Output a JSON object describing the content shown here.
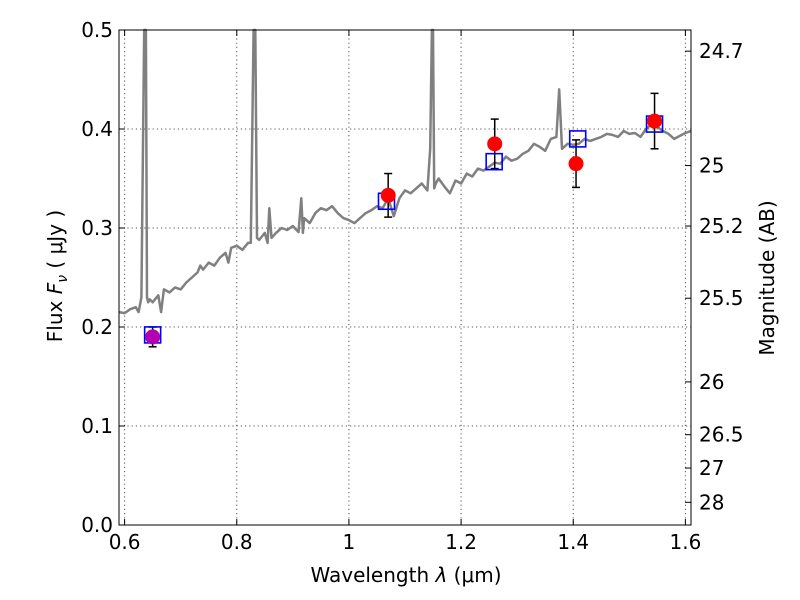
{
  "chart_data": {
    "type": "scatter",
    "title": "",
    "xlabel_prefix": "Wavelength  ",
    "xlabel_symbol": "λ",
    "xlabel_unit": " (μm)",
    "ylabel_prefix": "Flux  ",
    "ylabel_symbol": "F",
    "ylabel_subscript": "ν",
    "ylabel_unit": "  ( μJy )",
    "y2label": "Magnitude (AB)",
    "xlim": [
      0.59,
      1.61
    ],
    "ylim": [
      0.0,
      0.5
    ],
    "grid": true,
    "x_ticks": [
      0.6,
      0.8,
      1.0,
      1.2,
      1.4,
      1.6
    ],
    "x_tick_labels": [
      "0.6",
      "0.8",
      "1",
      "1.2",
      "1.4",
      "1.6"
    ],
    "y_ticks": [
      0.0,
      0.1,
      0.2,
      0.3,
      0.4,
      0.5
    ],
    "y_tick_labels": [
      "0.0",
      "0.1",
      "0.2",
      "0.3",
      "0.4",
      "0.5"
    ],
    "mag_ticks": [
      {
        "mag": 24.7,
        "label": "24.7"
      },
      {
        "mag": 25.0,
        "label": "25"
      },
      {
        "mag": 25.2,
        "label": "25.2"
      },
      {
        "mag": 25.5,
        "label": "25.5"
      },
      {
        "mag": 26.0,
        "label": "26"
      },
      {
        "mag": 26.5,
        "label": "26.5"
      },
      {
        "mag": 27.0,
        "label": "27"
      },
      {
        "mag": 28.0,
        "label": "28"
      }
    ],
    "series": [
      {
        "kind": "line",
        "color": "#808080",
        "x": [
          0.59,
          0.6,
          0.61,
          0.62,
          0.625,
          0.63,
          0.635,
          0.638,
          0.64,
          0.642,
          0.645,
          0.65,
          0.66,
          0.665,
          0.67,
          0.68,
          0.69,
          0.7,
          0.71,
          0.72,
          0.73,
          0.735,
          0.74,
          0.75,
          0.76,
          0.77,
          0.78,
          0.785,
          0.79,
          0.8,
          0.81,
          0.82,
          0.825,
          0.83,
          0.833,
          0.836,
          0.84,
          0.85,
          0.855,
          0.858,
          0.862,
          0.87,
          0.88,
          0.89,
          0.9,
          0.91,
          0.915,
          0.918,
          0.92,
          0.93,
          0.94,
          0.95,
          0.96,
          0.97,
          0.98,
          0.99,
          1.0,
          1.01,
          1.02,
          1.03,
          1.04,
          1.05,
          1.06,
          1.07,
          1.08,
          1.09,
          1.1,
          1.11,
          1.12,
          1.13,
          1.14,
          1.145,
          1.148,
          1.15,
          1.152,
          1.155,
          1.16,
          1.17,
          1.18,
          1.19,
          1.2,
          1.21,
          1.22,
          1.23,
          1.24,
          1.25,
          1.26,
          1.27,
          1.28,
          1.29,
          1.3,
          1.31,
          1.32,
          1.33,
          1.34,
          1.35,
          1.36,
          1.37,
          1.375,
          1.38,
          1.39,
          1.4,
          1.41,
          1.42,
          1.43,
          1.44,
          1.45,
          1.46,
          1.47,
          1.48,
          1.49,
          1.5,
          1.51,
          1.52,
          1.53,
          1.54,
          1.55,
          1.56,
          1.57,
          1.58,
          1.59,
          1.6,
          1.61
        ],
        "y": [
          0.215,
          0.214,
          0.218,
          0.22,
          0.215,
          0.23,
          0.5,
          0.5,
          0.23,
          0.225,
          0.228,
          0.225,
          0.232,
          0.215,
          0.238,
          0.235,
          0.24,
          0.238,
          0.245,
          0.25,
          0.255,
          0.262,
          0.258,
          0.265,
          0.262,
          0.27,
          0.275,
          0.265,
          0.28,
          0.282,
          0.278,
          0.285,
          0.285,
          0.5,
          0.5,
          0.29,
          0.288,
          0.295,
          0.285,
          0.32,
          0.29,
          0.295,
          0.3,
          0.298,
          0.302,
          0.296,
          0.33,
          0.295,
          0.31,
          0.305,
          0.315,
          0.32,
          0.318,
          0.322,
          0.315,
          0.31,
          0.308,
          0.305,
          0.31,
          0.315,
          0.318,
          0.322,
          0.32,
          0.33,
          0.312,
          0.33,
          0.338,
          0.335,
          0.34,
          0.345,
          0.338,
          0.38,
          0.5,
          0.5,
          0.34,
          0.345,
          0.35,
          0.342,
          0.335,
          0.348,
          0.345,
          0.355,
          0.352,
          0.36,
          0.358,
          0.362,
          0.366,
          0.365,
          0.372,
          0.368,
          0.37,
          0.375,
          0.378,
          0.385,
          0.382,
          0.378,
          0.39,
          0.392,
          0.44,
          0.38,
          0.385,
          0.384,
          0.385,
          0.39,
          0.388,
          0.39,
          0.392,
          0.395,
          0.394,
          0.392,
          0.398,
          0.395,
          0.396,
          0.392,
          0.4,
          0.405,
          0.402,
          0.398,
          0.395,
          0.39,
          0.393,
          0.396,
          0.398
        ]
      },
      {
        "kind": "markers",
        "marker": "circle",
        "color": "#ff0000",
        "x": [
          0.65,
          1.07,
          1.26,
          1.405,
          1.545
        ],
        "y": [
          0.19,
          0.333,
          0.385,
          0.365,
          0.408
        ],
        "yerr": [
          0.01,
          0.022,
          0.025,
          0.024,
          0.028
        ]
      },
      {
        "kind": "markers",
        "marker": "square",
        "color": "#0000ff",
        "x": [
          0.65,
          1.067,
          1.259,
          1.408,
          1.545
        ],
        "y": [
          0.192,
          0.327,
          0.367,
          0.39,
          0.405
        ]
      }
    ]
  }
}
